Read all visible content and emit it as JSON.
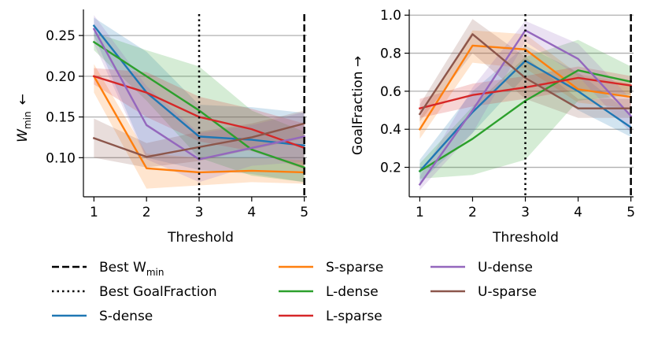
{
  "chart_data": [
    {
      "type": "line",
      "id": "wmin",
      "ylabel_main": "W",
      "ylabel_sub": "min",
      "ylabel_arrow": "←",
      "xlabel": "Threshold",
      "x": [
        1,
        2,
        3,
        4,
        5
      ],
      "xlim": [
        0.8,
        5.05
      ],
      "ylim": [
        0.052,
        0.282
      ],
      "yticks": [
        0.1,
        0.15,
        0.2,
        0.25
      ],
      "ytick_labels": [
        "0.10",
        "0.15",
        "0.20",
        "0.25"
      ],
      "xtick_labels": [
        "1",
        "2",
        "3",
        "4",
        "5"
      ],
      "grid": "horizontal",
      "series": [
        {
          "name": "S-dense",
          "color": "#1f77b4",
          "values": [
            0.262,
            0.18,
            0.126,
            0.122,
            0.115
          ],
          "lower": [
            0.25,
            0.1,
            0.085,
            0.08,
            0.07
          ],
          "upper": [
            0.272,
            0.23,
            0.165,
            0.162,
            0.155
          ]
        },
        {
          "name": "S-sparse",
          "color": "#ff7f0e",
          "values": [
            0.2,
            0.087,
            0.082,
            0.084,
            0.082
          ],
          "lower": [
            0.18,
            0.062,
            0.066,
            0.07,
            0.068
          ],
          "upper": [
            0.215,
            0.105,
            0.1,
            0.1,
            0.097
          ]
        },
        {
          "name": "L-dense",
          "color": "#2ca02c",
          "values": [
            0.242,
            0.2,
            0.158,
            0.11,
            0.088
          ],
          "lower": [
            0.232,
            0.17,
            0.1,
            0.078,
            0.07
          ],
          "upper": [
            0.254,
            0.232,
            0.212,
            0.158,
            0.132
          ]
        },
        {
          "name": "L-sparse",
          "color": "#d62728",
          "values": [
            0.2,
            0.18,
            0.15,
            0.135,
            0.112
          ],
          "lower": [
            0.19,
            0.15,
            0.12,
            0.108,
            0.086
          ],
          "upper": [
            0.21,
            0.205,
            0.175,
            0.16,
            0.142
          ]
        },
        {
          "name": "U-dense",
          "color": "#9467bd",
          "values": [
            0.258,
            0.14,
            0.098,
            0.112,
            0.126
          ],
          "lower": [
            0.24,
            0.098,
            0.07,
            0.09,
            0.095
          ],
          "upper": [
            0.275,
            0.188,
            0.13,
            0.14,
            0.156
          ]
        },
        {
          "name": "U-sparse",
          "color": "#8c564b",
          "values": [
            0.124,
            0.101,
            0.113,
            0.125,
            0.142
          ],
          "lower": [
            0.1,
            0.088,
            0.096,
            0.11,
            0.124
          ],
          "upper": [
            0.148,
            0.118,
            0.132,
            0.142,
            0.158
          ]
        }
      ],
      "best_goalfraction_x": 3,
      "best_wmin_x": 5
    },
    {
      "type": "line",
      "id": "goalfraction",
      "ylabel": "GoalFraction →",
      "xlabel": "Threshold",
      "x": [
        1,
        2,
        3,
        4,
        5
      ],
      "xlim": [
        0.8,
        5.05
      ],
      "ylim": [
        0.045,
        1.03
      ],
      "yticks": [
        0.2,
        0.4,
        0.6,
        0.8,
        1.0
      ],
      "ytick_labels": [
        "0.2",
        "0.4",
        "0.6",
        "0.8",
        "1.0"
      ],
      "xtick_labels": [
        "1",
        "2",
        "3",
        "4",
        "5"
      ],
      "grid": "horizontal",
      "series": [
        {
          "name": "S-dense",
          "color": "#1f77b4",
          "values": [
            0.18,
            0.49,
            0.76,
            0.6,
            0.41
          ],
          "lower": [
            0.12,
            0.38,
            0.68,
            0.5,
            0.36
          ],
          "upper": [
            0.24,
            0.6,
            0.84,
            0.7,
            0.48
          ]
        },
        {
          "name": "S-sparse",
          "color": "#ff7f0e",
          "values": [
            0.4,
            0.84,
            0.82,
            0.61,
            0.57
          ],
          "lower": [
            0.35,
            0.75,
            0.72,
            0.54,
            0.51
          ],
          "upper": [
            0.46,
            0.92,
            0.9,
            0.69,
            0.64
          ]
        },
        {
          "name": "L-dense",
          "color": "#2ca02c",
          "values": [
            0.18,
            0.35,
            0.55,
            0.71,
            0.65
          ],
          "lower": [
            0.14,
            0.16,
            0.24,
            0.55,
            0.58
          ],
          "upper": [
            0.22,
            0.52,
            0.78,
            0.87,
            0.73
          ]
        },
        {
          "name": "L-sparse",
          "color": "#d62728",
          "values": [
            0.51,
            0.58,
            0.62,
            0.67,
            0.63
          ],
          "lower": [
            0.46,
            0.52,
            0.56,
            0.61,
            0.58
          ],
          "upper": [
            0.56,
            0.64,
            0.68,
            0.73,
            0.68
          ]
        },
        {
          "name": "U-dense",
          "color": "#9467bd",
          "values": [
            0.11,
            0.5,
            0.92,
            0.77,
            0.47
          ],
          "lower": [
            0.08,
            0.38,
            0.86,
            0.68,
            0.38
          ],
          "upper": [
            0.15,
            0.62,
            0.97,
            0.85,
            0.56
          ]
        },
        {
          "name": "U-sparse",
          "color": "#8c564b",
          "values": [
            0.48,
            0.9,
            0.67,
            0.51,
            0.51
          ],
          "lower": [
            0.44,
            0.8,
            0.56,
            0.46,
            0.46
          ],
          "upper": [
            0.53,
            0.98,
            0.78,
            0.56,
            0.56
          ]
        }
      ],
      "best_goalfraction_x": 3,
      "best_wmin_x": 5
    }
  ],
  "legend": {
    "best_wmin_main": "Best W",
    "best_wmin_sub": "min",
    "best_goalfraction": "Best GoalFraction",
    "items": [
      "S-dense",
      "S-sparse",
      "L-dense",
      "L-sparse",
      "U-dense",
      "U-sparse"
    ]
  }
}
